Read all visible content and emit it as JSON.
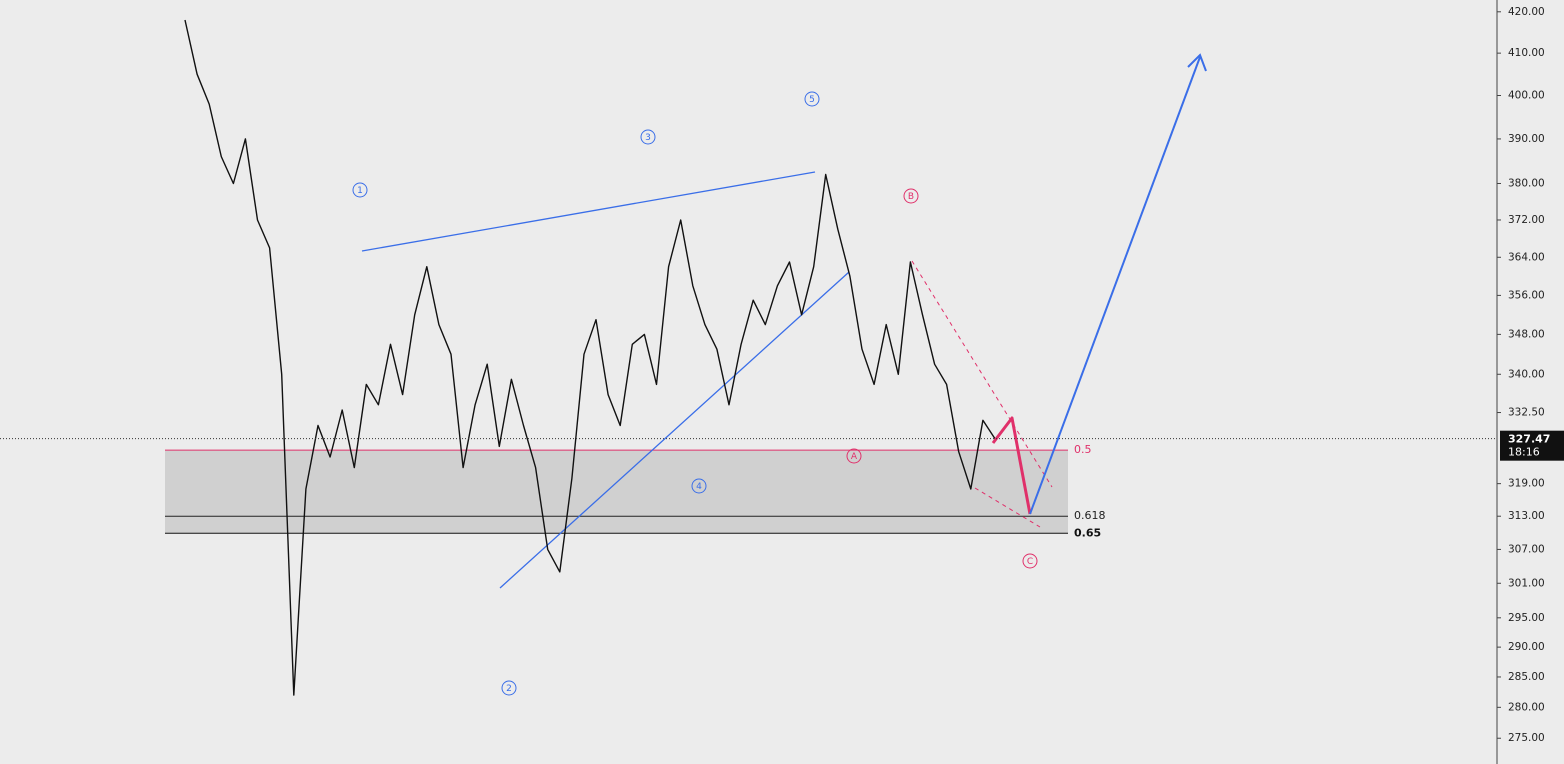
{
  "chart_data": {
    "type": "line",
    "color": "#111111",
    "log_scale": true,
    "values": [
      418,
      405,
      398,
      386,
      380,
      390,
      372,
      366,
      340,
      282,
      318,
      330,
      324,
      333,
      322,
      338,
      334,
      346,
      336,
      352,
      362,
      350,
      344,
      322,
      334,
      342,
      326,
      339,
      330,
      322,
      307,
      303,
      320,
      344,
      351,
      336,
      330,
      346,
      348,
      338,
      362,
      372,
      358,
      350,
      345,
      334,
      346,
      355,
      350,
      358,
      363,
      352,
      362,
      382,
      370,
      360,
      345,
      338,
      350,
      340,
      363,
      352,
      342,
      338,
      325,
      318,
      331,
      327.47
    ],
    "ylim": [
      270.9,
      422.9
    ],
    "yticks": [
      {
        "value": 420,
        "label": "420.00"
      },
      {
        "value": 410,
        "label": "410.00"
      },
      {
        "value": 400,
        "label": "400.00"
      },
      {
        "value": 390,
        "label": "390.00"
      },
      {
        "value": 380,
        "label": "380.00"
      },
      {
        "value": 372,
        "label": "372.00"
      },
      {
        "value": 364,
        "label": "364.00"
      },
      {
        "value": 356,
        "label": "356.00"
      },
      {
        "value": 348,
        "label": "348.00"
      },
      {
        "value": 340,
        "label": "340.00"
      },
      {
        "value": 332.5,
        "label": "332.50"
      },
      {
        "value": 319,
        "label": "319.00"
      },
      {
        "value": 313,
        "label": "313.00"
      },
      {
        "value": 307,
        "label": "307.00"
      },
      {
        "value": 301,
        "label": "301.00"
      },
      {
        "value": 295,
        "label": "295.00"
      },
      {
        "value": 290,
        "label": "290.00"
      },
      {
        "value": 285,
        "label": "285.00"
      },
      {
        "value": 280,
        "label": "280.00"
      },
      {
        "value": 275,
        "label": "275.00"
      }
    ],
    "last_price": {
      "value": 327.47,
      "label": "327.47",
      "timer": "18:16"
    },
    "fib_levels": [
      {
        "level": 0.5,
        "price": 325.3,
        "color": "#e0306a"
      },
      {
        "level": 0.618,
        "price": 313.0,
        "color": "#222222"
      },
      {
        "level": 0.65,
        "price": 309.9,
        "color": "#111111"
      }
    ],
    "wave_labels": [
      {
        "text": "1",
        "color": "#3a6ee8"
      },
      {
        "text": "2",
        "color": "#3a6ee8"
      },
      {
        "text": "3",
        "color": "#3a6ee8"
      },
      {
        "text": "4",
        "color": "#3a6ee8"
      },
      {
        "text": "5",
        "color": "#3a6ee8"
      },
      {
        "text": "A",
        "color": "#e0306a"
      },
      {
        "text": "B",
        "color": "#e0306a"
      },
      {
        "text": "C",
        "color": "#e0306a"
      }
    ]
  }
}
